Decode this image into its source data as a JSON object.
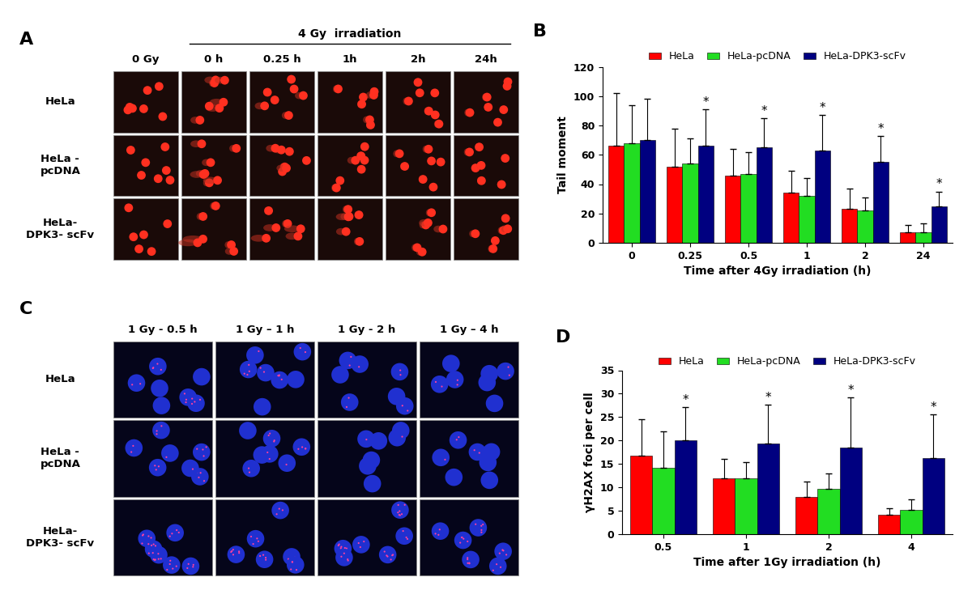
{
  "panels": [
    {
      "title": "A",
      "type": "image_grid",
      "header": {
        "text": "4 Gy  irradiation",
        "over": [
          "0 h",
          "0.25 h",
          "1h",
          "2h",
          "24h"
        ]
      },
      "columns": [
        "0 Gy",
        "0 h",
        "0.25 h",
        "1h",
        "2h",
        "24h"
      ],
      "rows": [
        "HeLa",
        "HeLa -\npcDNA",
        "HeLa-\nDPK3- scFv"
      ]
    },
    {
      "title": "C",
      "type": "image_grid",
      "columns": [
        "1 Gy - 0.5 h",
        "1 Gy – 1 h",
        "1 Gy - 2 h",
        "1 Gy – 4 h"
      ],
      "rows": [
        "HeLa",
        "HeLa -\npcDNA",
        "HeLa-\nDPK3- scFv"
      ]
    }
  ],
  "chart_data": [
    {
      "type": "bar",
      "title": "B",
      "x_label": "Time after 4Gy irradiation (h)",
      "y_label": "Tail moment",
      "categories": [
        "0",
        "0.25",
        "0.5",
        "1",
        "2",
        "24"
      ],
      "series": [
        {
          "name": "HeLa",
          "color": "#ff0000",
          "values": [
            66,
            52,
            46,
            34,
            23,
            7
          ],
          "errors": [
            36,
            26,
            18,
            15,
            14,
            5
          ]
        },
        {
          "name": "HeLa-pcDNA",
          "color": "#22dd22",
          "values": [
            68,
            54,
            47,
            32,
            22,
            7
          ],
          "errors": [
            26,
            17,
            15,
            12,
            9,
            6
          ]
        },
        {
          "name": "HeLa-DPK3-scFv",
          "color": "#000080",
          "values": [
            70,
            66,
            65,
            63,
            55,
            25
          ],
          "errors": [
            28,
            25,
            20,
            24,
            18,
            10
          ]
        }
      ],
      "annotations": [
        {
          "text": "*",
          "category": "0.25",
          "series": "HeLa-DPK3-scFv"
        },
        {
          "text": "*",
          "category": "0.5",
          "series": "HeLa-DPK3-scFv"
        },
        {
          "text": "*",
          "category": "1",
          "series": "HeLa-DPK3-scFv"
        },
        {
          "text": "*",
          "category": "2",
          "series": "HeLa-DPK3-scFv"
        },
        {
          "text": "*",
          "category": "24",
          "series": "HeLa-DPK3-scFv"
        }
      ],
      "ylim": [
        0,
        120
      ],
      "yticks": [
        0,
        20,
        40,
        60,
        80,
        100,
        120
      ],
      "legend": "upper center",
      "grid": false
    },
    {
      "type": "bar",
      "title": "D",
      "x_label": "Time after 1Gy irradiation (h)",
      "y_label": "γH2AX foci per cell",
      "categories": [
        "0.5",
        "1",
        "2",
        "4"
      ],
      "series": [
        {
          "name": "HeLa",
          "color": "#ff0000",
          "values": [
            16.8,
            12,
            8,
            4.2
          ],
          "errors": [
            7.7,
            4,
            3.2,
            1.3
          ]
        },
        {
          "name": "HeLa-pcDNA",
          "color": "#22dd22",
          "values": [
            14.2,
            12,
            9.7,
            5.2
          ],
          "errors": [
            7.8,
            3.3,
            3.3,
            2.3
          ]
        },
        {
          "name": "HeLa-DPK3-scFv",
          "color": "#000080",
          "values": [
            20,
            19.4,
            18.5,
            16.2
          ],
          "errors": [
            7.2,
            8.3,
            10.7,
            9.4
          ]
        }
      ],
      "annotations": [
        {
          "text": "*",
          "category": "0.5",
          "series": "HeLa-DPK3-scFv"
        },
        {
          "text": "*",
          "category": "1",
          "series": "HeLa-DPK3-scFv"
        },
        {
          "text": "*",
          "category": "2",
          "series": "HeLa-DPK3-scFv"
        },
        {
          "text": "*",
          "category": "4",
          "series": "HeLa-DPK3-scFv"
        }
      ],
      "ylim": [
        0,
        35
      ],
      "yticks": [
        0,
        5,
        10,
        15,
        20,
        25,
        30,
        35
      ],
      "legend": "upper center",
      "grid": false
    }
  ]
}
